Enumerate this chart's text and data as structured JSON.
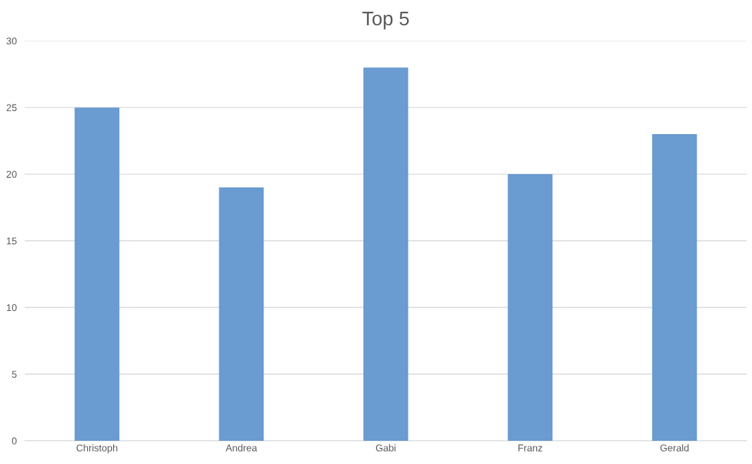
{
  "chart_data": {
    "type": "bar",
    "title": "Top 5",
    "categories": [
      "Christoph",
      "Andrea",
      "Gabi",
      "Franz",
      "Gerald"
    ],
    "values": [
      25,
      19,
      28,
      20,
      23
    ],
    "color": "#6a9bd1",
    "ylim": [
      0,
      30
    ],
    "yticks": [
      0,
      5,
      10,
      15,
      20,
      25,
      30
    ],
    "grid": "y",
    "legend": false
  }
}
